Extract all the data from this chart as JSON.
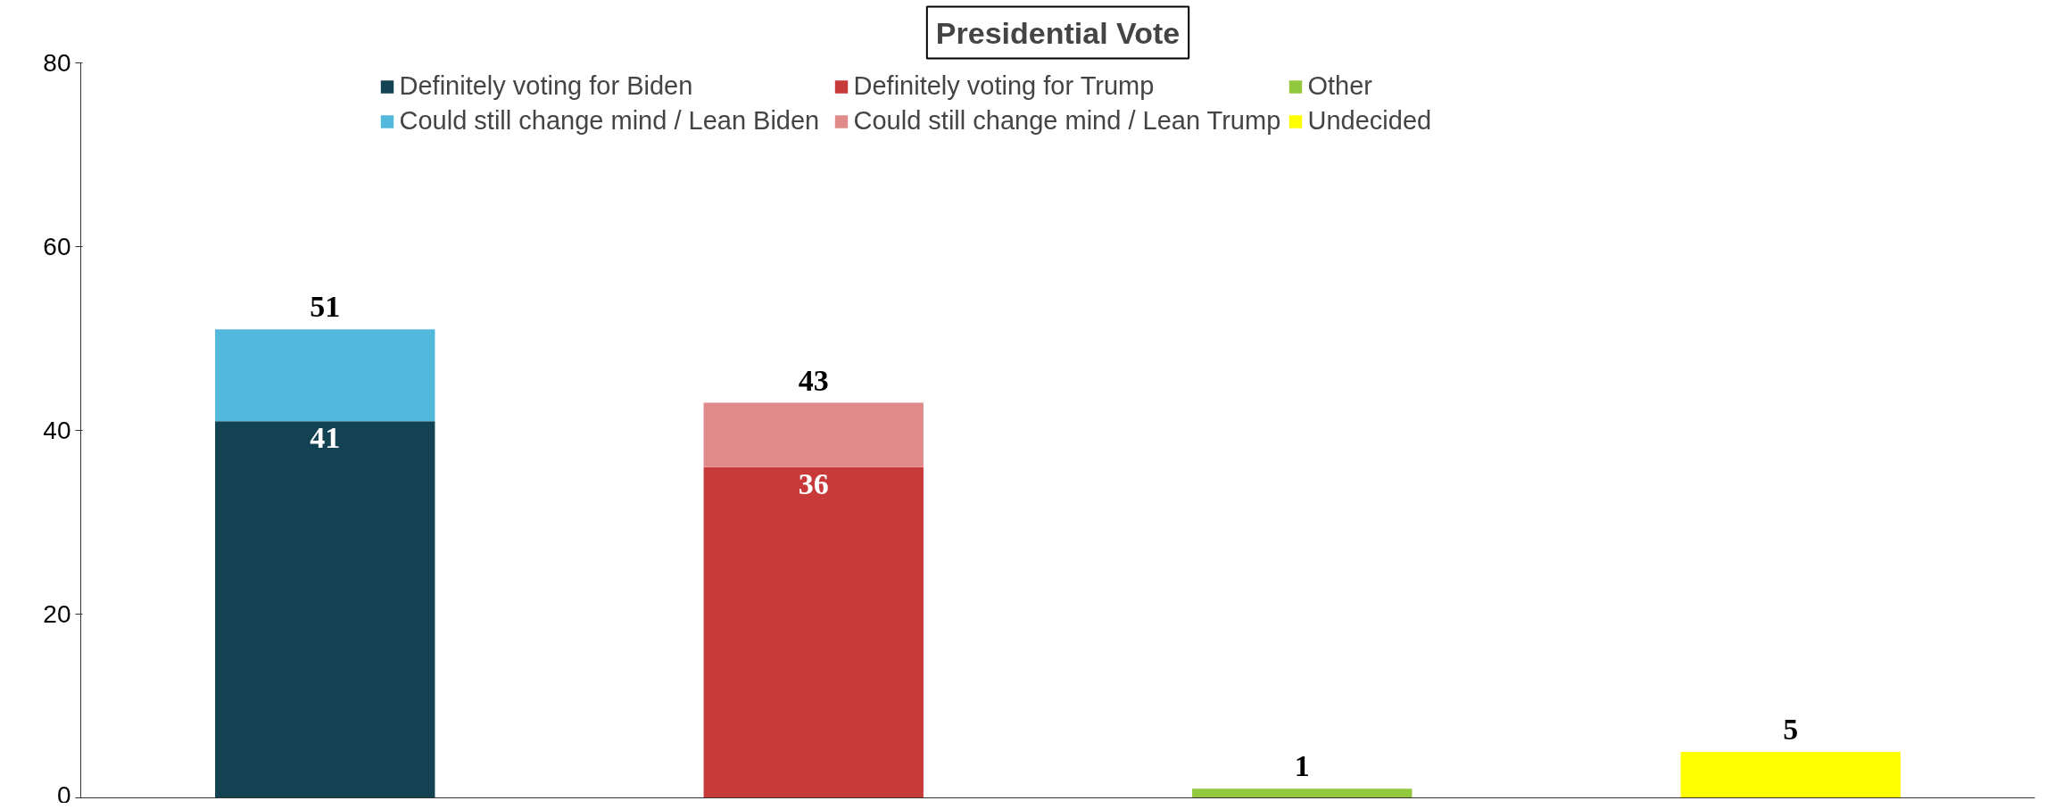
{
  "chart_data": {
    "type": "bar",
    "title": "Presidential Vote",
    "stacked": true,
    "categories": [
      null,
      null,
      null,
      null
    ],
    "series": [
      {
        "name": "Definitely voting for Biden",
        "color": "#134252",
        "values": [
          41,
          null,
          null,
          null
        ],
        "value_labels": [
          "41",
          null,
          null,
          null
        ]
      },
      {
        "name": "Could still change mind / Lean Biden",
        "color": "#52b9dd",
        "values": [
          10,
          null,
          null,
          null
        ]
      },
      {
        "name": "Definitely voting for Trump",
        "color": "#c83a3a",
        "values": [
          null,
          36,
          null,
          null
        ],
        "value_labels": [
          null,
          "36",
          null,
          null
        ]
      },
      {
        "name": "Could still change mind / Lean Trump",
        "color": "#e08a8a",
        "values": [
          null,
          7,
          null,
          null
        ]
      },
      {
        "name": "Other",
        "color": "#92c83e",
        "values": [
          null,
          null,
          1,
          null
        ]
      },
      {
        "name": "Undecided",
        "color": "#ffff00",
        "values": [
          null,
          null,
          null,
          5
        ]
      }
    ],
    "totals": [
      "51",
      "43",
      "1",
      "5"
    ],
    "ylim": [
      0,
      80
    ],
    "yticks": [
      0,
      20,
      40,
      60,
      80
    ],
    "grid": false,
    "legend": "top",
    "tick_labels": "y"
  }
}
